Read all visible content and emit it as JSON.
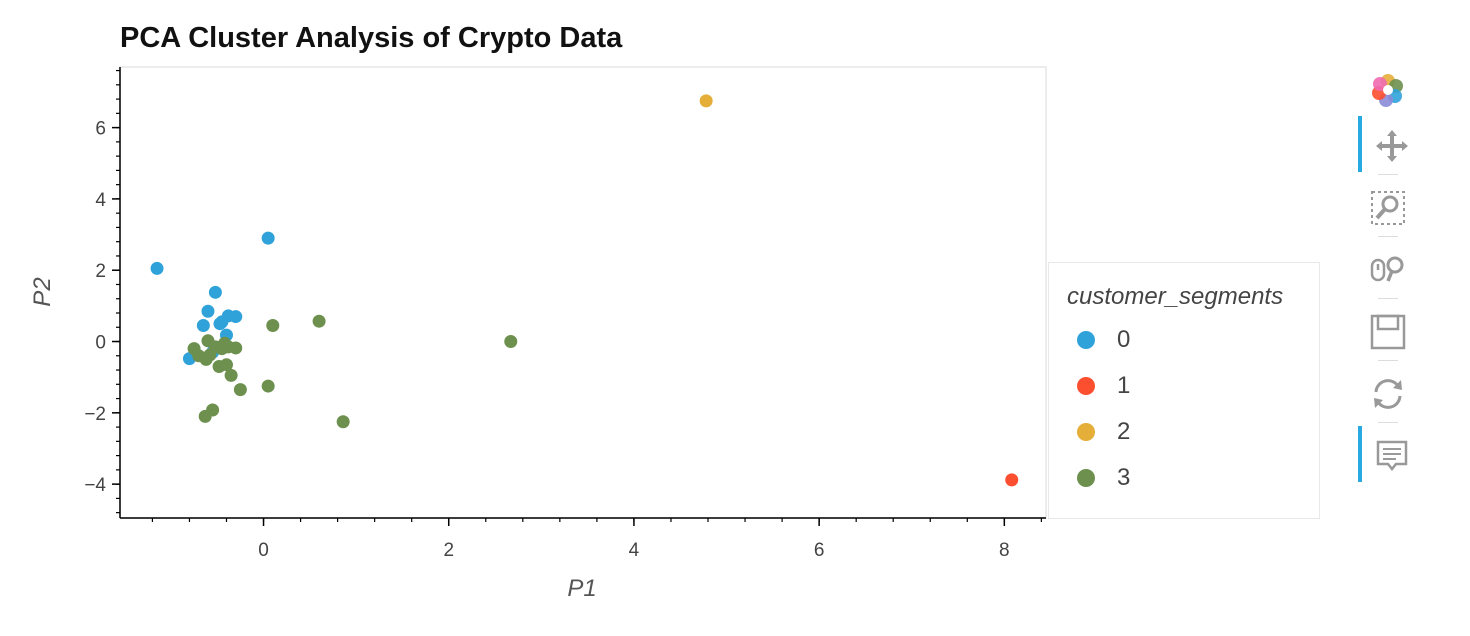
{
  "chart_data": {
    "type": "scatter",
    "title": "PCA Cluster Analysis of Crypto Data",
    "xlabel": "P1",
    "ylabel": "P2",
    "xlim": [
      -1.55,
      8.45
    ],
    "ylim": [
      -4.95,
      7.7
    ],
    "xticks": [
      0,
      2,
      4,
      6,
      8
    ],
    "yticks": [
      -4,
      -2,
      0,
      2,
      4,
      6
    ],
    "grid": false,
    "legend_title": "customer_segments",
    "legend_position": "right",
    "series": [
      {
        "name": "0",
        "color": "#30a2da",
        "points": [
          [
            -1.15,
            2.05
          ],
          [
            0.05,
            2.9
          ],
          [
            -0.52,
            1.38
          ],
          [
            -0.6,
            0.85
          ],
          [
            -0.65,
            0.45
          ],
          [
            -0.45,
            0.55
          ],
          [
            -0.38,
            0.72
          ],
          [
            -0.3,
            0.7
          ],
          [
            -0.4,
            0.18
          ],
          [
            -0.47,
            0.5
          ],
          [
            -0.8,
            -0.48
          ],
          [
            -0.55,
            -0.3
          ]
        ]
      },
      {
        "name": "1",
        "color": "#fc4f30",
        "points": [
          [
            8.08,
            -3.88
          ]
        ]
      },
      {
        "name": "2",
        "color": "#e5ae38",
        "points": [
          [
            4.78,
            6.75
          ]
        ]
      },
      {
        "name": "3",
        "color": "#6d904f",
        "points": [
          [
            -0.75,
            -0.2
          ],
          [
            -0.7,
            -0.4
          ],
          [
            -0.62,
            -0.5
          ],
          [
            -0.58,
            -0.38
          ],
          [
            -0.6,
            0.02
          ],
          [
            -0.52,
            -0.15
          ],
          [
            -0.48,
            -0.7
          ],
          [
            -0.45,
            -0.2
          ],
          [
            -0.42,
            -0.05
          ],
          [
            -0.4,
            -0.65
          ],
          [
            -0.38,
            -0.15
          ],
          [
            -0.35,
            -0.95
          ],
          [
            -0.3,
            -0.18
          ],
          [
            -0.25,
            -1.35
          ],
          [
            -0.55,
            -1.92
          ],
          [
            -0.63,
            -2.1
          ],
          [
            0.05,
            -1.25
          ],
          [
            0.1,
            0.45
          ],
          [
            0.6,
            0.57
          ],
          [
            0.86,
            -2.25
          ],
          [
            2.67,
            0.0
          ]
        ]
      }
    ]
  },
  "legend": {
    "title": "customer_segments",
    "items": [
      {
        "label": "0",
        "color": "#30a2da"
      },
      {
        "label": "1",
        "color": "#fc4f30"
      },
      {
        "label": "2",
        "color": "#e5ae38"
      },
      {
        "label": "3",
        "color": "#6d904f"
      }
    ]
  },
  "toolbar": {
    "tools": [
      {
        "icon": "bokeh-logo-icon",
        "active": false
      },
      {
        "icon": "pan-icon",
        "active": true
      },
      {
        "icon": "box-zoom-icon",
        "active": false
      },
      {
        "icon": "wheel-zoom-icon",
        "active": false
      },
      {
        "icon": "save-icon",
        "active": false
      },
      {
        "icon": "reset-icon",
        "active": false
      },
      {
        "icon": "hover-icon",
        "active": true
      }
    ]
  }
}
